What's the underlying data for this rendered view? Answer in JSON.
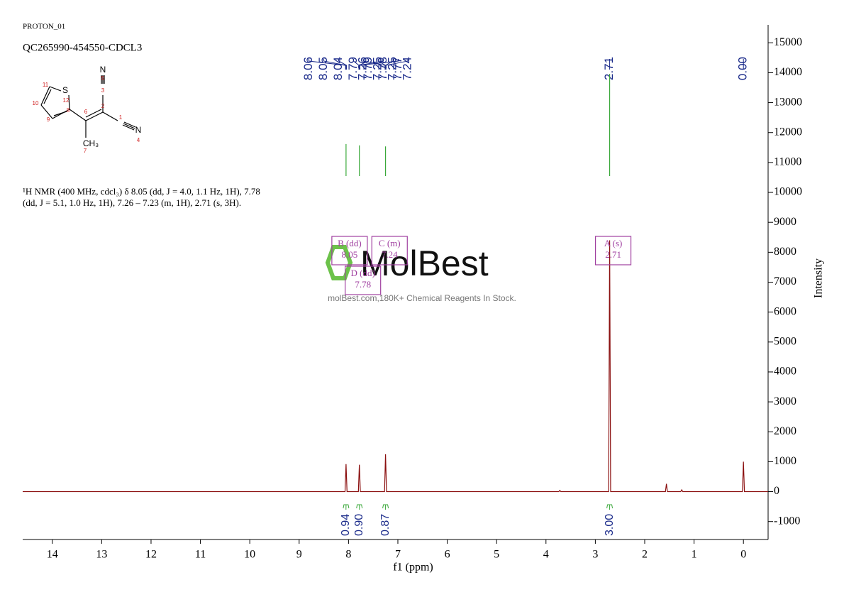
{
  "header": {
    "experiment": "PROTON_01",
    "sample": "QC265990-454550-CDCL3"
  },
  "description": "¹H NMR (400 MHz, cdcl₃) δ 8.05 (dd, J = 4.0, 1.1 Hz, 1H), 7.78 (dd, J = 5.1, 1.0 Hz, 1H), 7.26 – 7.23 (m, 1H), 2.71 (s, 3H).",
  "structure": {
    "labels": [
      "11",
      "S",
      "12",
      "10",
      "9",
      "8",
      "6",
      "2",
      "3",
      "5",
      "N",
      "1",
      "N",
      "4",
      "CH₃",
      "7"
    ]
  },
  "watermark": {
    "brand": "MolBest",
    "tagline": "molBest.com,180K+ Chemical Reagents In Stock."
  },
  "chart_data": {
    "type": "line",
    "x": [
      14.6,
      8.07,
      8.05,
      8.03,
      7.8,
      7.78,
      7.76,
      7.27,
      7.25,
      7.23,
      3.74,
      3.72,
      3.7,
      2.73,
      2.71,
      2.69,
      1.58,
      1.56,
      1.54,
      1.27,
      1.25,
      1.23,
      0.02,
      0,
      -0.02,
      -0.5
    ],
    "values": [
      0,
      0,
      920,
      0,
      0,
      900,
      0,
      0,
      1250,
      0,
      0,
      40,
      0,
      0,
      8400,
      0,
      0,
      260,
      0,
      0,
      60,
      0,
      0,
      1000,
      0,
      0
    ],
    "color": "#8b1010",
    "xlim": [
      14.6,
      -0.5
    ],
    "xticks": [
      14,
      13,
      12,
      11,
      10,
      9,
      8,
      7,
      6,
      5,
      4,
      3,
      2,
      1,
      0
    ],
    "ylim": [
      -1600,
      15600
    ],
    "yticks": [
      -1000,
      0,
      1000,
      2000,
      3000,
      4000,
      5000,
      6000,
      7000,
      8000,
      9000,
      10000,
      11000,
      12000,
      13000,
      14000,
      15000
    ],
    "xlabel": "f1 (ppm)",
    "ylabel": "Intensity",
    "peak_labels": [
      8.06,
      8.05,
      8.04,
      7.79,
      7.79,
      7.78,
      7.77,
      7.26,
      7.25,
      7.25,
      7.24,
      2.71,
      {
        "value": 0,
        "label": "0.00"
      }
    ],
    "integrals": [
      {
        "ppm": 8.05,
        "value": 0.94,
        "label": "0.94"
      },
      {
        "ppm": 7.78,
        "value": 0.9,
        "label": "0.90"
      },
      {
        "ppm": 7.25,
        "value": 0.87,
        "label": "0.87"
      },
      {
        "ppm": 2.71,
        "value": 3,
        "label": "3.00"
      }
    ],
    "multiplets": [
      {
        "label": "B (dd)",
        "shift": 8.05
      },
      {
        "label": "C (m)",
        "shift": 7.24
      },
      {
        "label": "D (dd)",
        "shift": 7.78
      },
      {
        "label": "A (s)",
        "shift": 2.71
      }
    ]
  }
}
